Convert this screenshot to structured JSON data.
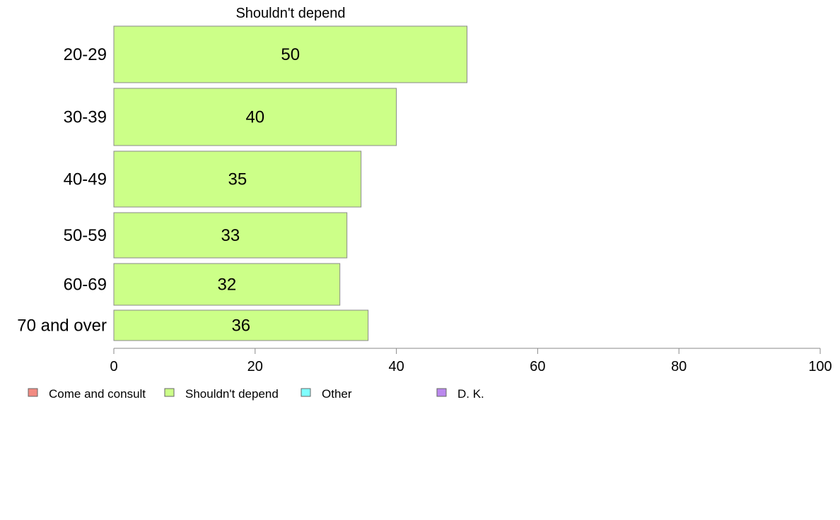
{
  "chart_data": {
    "type": "bar",
    "orientation": "horizontal",
    "title": "Shouldn't depend",
    "categories": [
      "20-29",
      "30-39",
      "40-49",
      "50-59",
      "60-69",
      "70 and over"
    ],
    "series": [
      {
        "name": "Shouldn't depend",
        "values": [
          50,
          40,
          35,
          33,
          32,
          36
        ],
        "color": "#ccff88"
      }
    ],
    "data_labels": [
      "50",
      "40",
      "35",
      "33",
      "32",
      "36"
    ],
    "xlim": [
      0,
      100
    ],
    "xticks": [
      0,
      20,
      40,
      60,
      80,
      100
    ],
    "xtick_labels": [
      "0",
      "20",
      "40",
      "60",
      "80",
      "100"
    ],
    "grid": false,
    "legend_placement": "bottom-left",
    "legend": [
      {
        "label": "Come and consult",
        "color": "#f28b82"
      },
      {
        "label": "Shouldn't depend",
        "color": "#ccff88"
      },
      {
        "label": "Other",
        "color": "#80ffff"
      },
      {
        "label": "D. K.",
        "color": "#bb88ee"
      }
    ]
  }
}
